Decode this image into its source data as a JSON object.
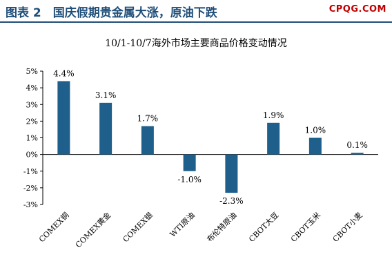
{
  "header": {
    "title": "图表 2　国庆假期贵金属大涨，原油下跌",
    "brand": "CPQG.COM"
  },
  "colors": {
    "bar": "#1f5f8b",
    "header_text": "#1f4e79",
    "brand": "#c00000"
  },
  "chart_data": {
    "type": "bar",
    "title": "10/1-10/7海外市场主要商品价格变动情况",
    "categories": [
      "COMEX铜",
      "COMEX黄金",
      "COMEX银",
      "WTI原油",
      "布伦特原油",
      "CBOT大豆",
      "CBOT玉米",
      "CBOT小麦"
    ],
    "values": [
      4.4,
      3.1,
      1.7,
      -1.0,
      -2.3,
      1.9,
      1.0,
      0.1
    ],
    "data_labels": [
      "4.4%",
      "3.1%",
      "1.7%",
      "-1.0%",
      "-2.3%",
      "1.9%",
      "1.0%",
      "0.1%"
    ],
    "yticks": [
      "5%",
      "4%",
      "3%",
      "2%",
      "1%",
      "0%",
      "-1%",
      "-2%",
      "-3%"
    ],
    "ylim": [
      -3,
      5
    ],
    "xlabel": "",
    "ylabel": "",
    "grid": false,
    "legend": "none"
  }
}
